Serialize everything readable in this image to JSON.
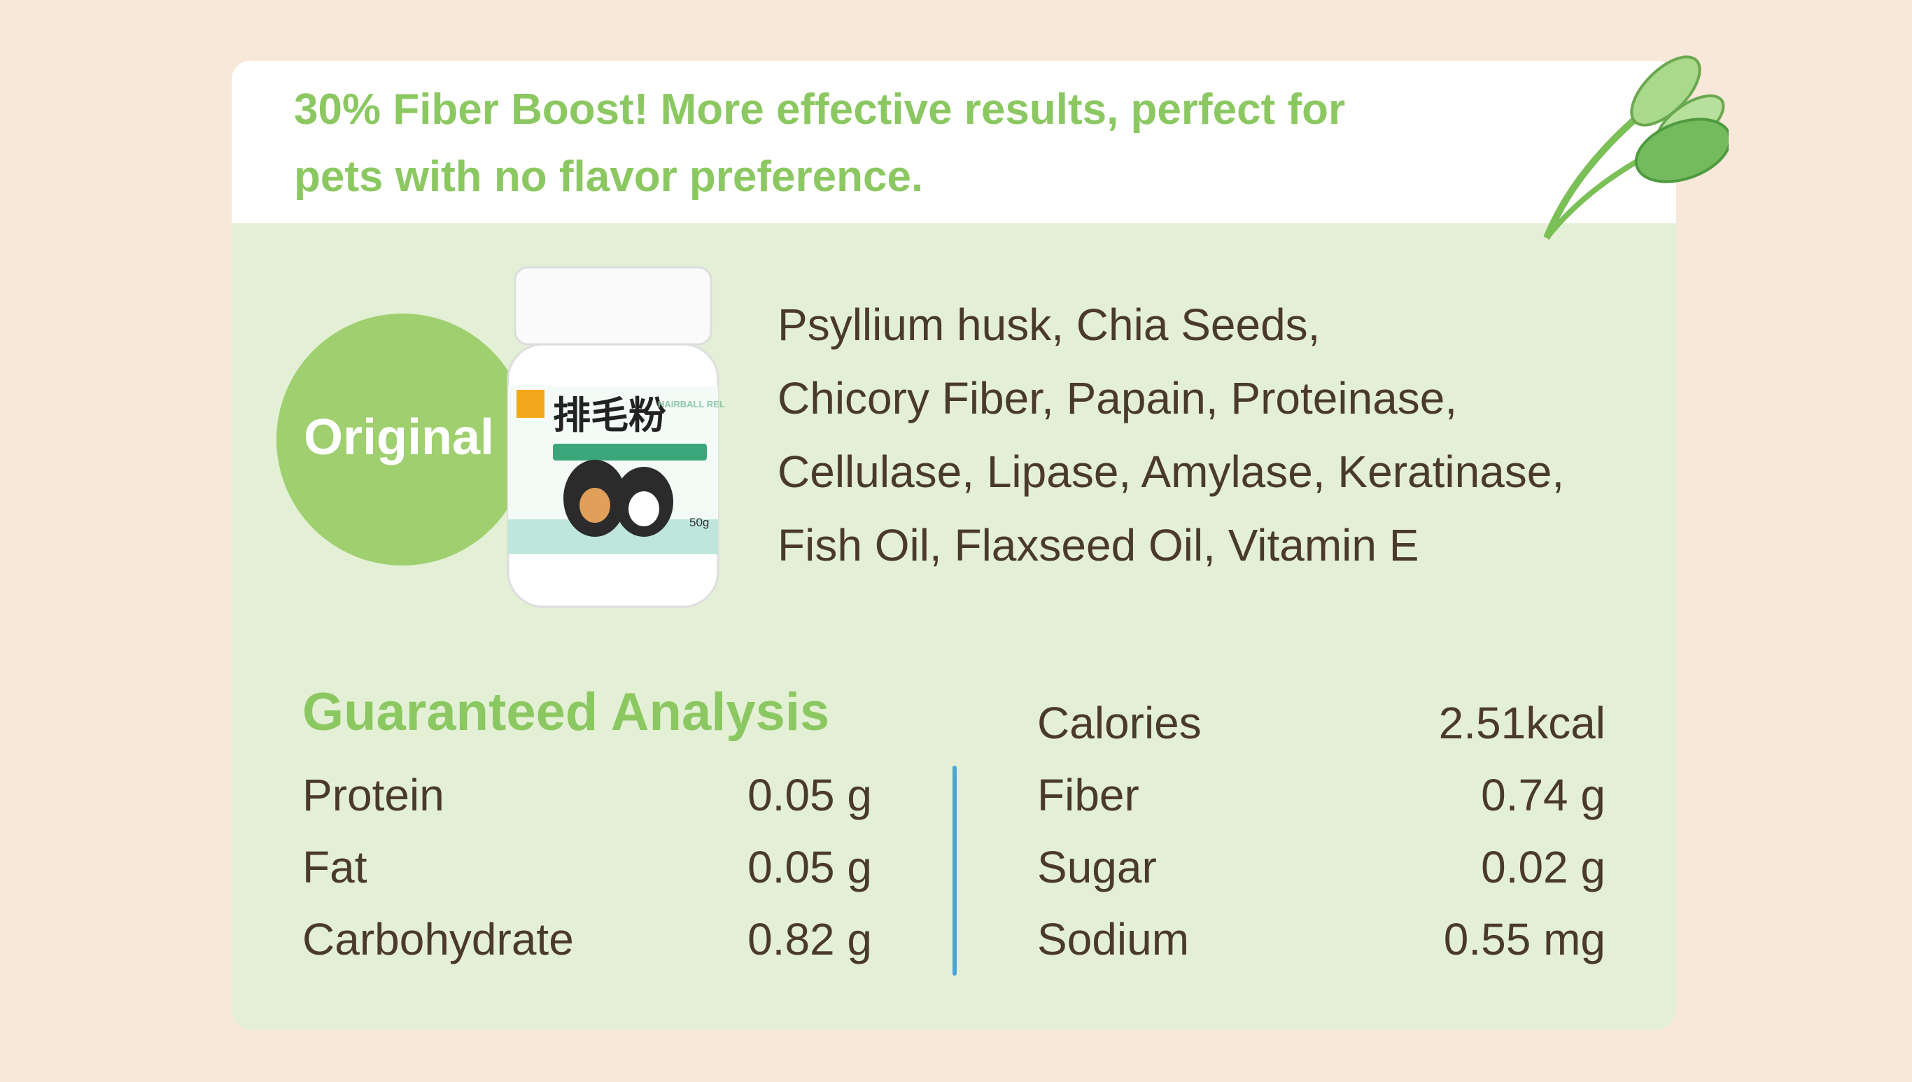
{
  "header": {
    "lines": [
      "30% Fiber Boost! More effective results, perfect for",
      "pets with no flavor preference."
    ]
  },
  "badge": "Original",
  "product": {
    "name": "排毛粉",
    "english": "HAIRBALL RELIEF",
    "weight": "50g"
  },
  "ingredients": [
    "Psyllium husk, Chia Seeds,",
    "Chicory Fiber, Papain, Proteinase,",
    "Cellulase, Lipase, Amylase, Keratinase,",
    "Fish Oil, Flaxseed Oil, Vitamin E"
  ],
  "analysis": {
    "title": "Guaranteed Analysis",
    "left": [
      [
        "Protein",
        "0.05 g"
      ],
      [
        "Fat",
        "0.05 g"
      ],
      [
        "Carbohydrate",
        "0.82 g"
      ]
    ],
    "right": [
      [
        "Calories",
        "2.51kcal"
      ],
      [
        "Fiber",
        "0.74 g"
      ],
      [
        "Sugar",
        "0.02 g"
      ],
      [
        "Sodium",
        "0.55 mg"
      ]
    ]
  }
}
